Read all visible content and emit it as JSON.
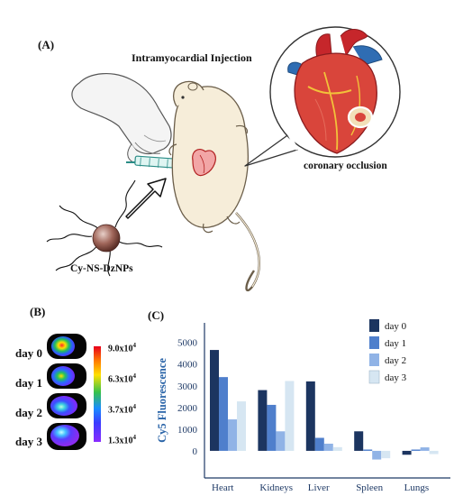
{
  "panel_a": {
    "label": "(A)",
    "title": "Intramyocardial Injection",
    "particle_name": "Cy-NS-DzNPs",
    "zoom_caption": "coronary occlusion"
  },
  "panel_b": {
    "label": "(B)",
    "days": [
      "day 0",
      "day 1",
      "day 2",
      "day 3"
    ],
    "colorbar_ticks": [
      "9.0x10",
      "6.3x10",
      "3.7x10",
      "1.3x10"
    ],
    "colorbar_exponent": "4"
  },
  "panel_c": {
    "label": "(C)"
  },
  "chart_data": {
    "type": "bar",
    "categories": [
      "Heart",
      "Kidneys",
      "Liver",
      "Spleen",
      "Lungs"
    ],
    "ylabel": "Cy5 Fluorescence",
    "yticks": [
      5000,
      4000,
      3000,
      2000,
      1000,
      0
    ],
    "ylim": [
      -1250,
      5900
    ],
    "legend_position": "top-right",
    "series": [
      {
        "name": "day 0",
        "color": "#1c3560",
        "values": [
          4650,
          2800,
          3200,
          900,
          -180
        ]
      },
      {
        "name": "day 1",
        "color": "#4f7fcc",
        "values": [
          3400,
          2120,
          600,
          60,
          60
        ]
      },
      {
        "name": "day 2",
        "color": "#90b3e6",
        "values": [
          1450,
          900,
          330,
          -400,
          160
        ]
      },
      {
        "name": "day 3",
        "color": "#d6e6f2",
        "values": [
          2280,
          3220,
          170,
          -340,
          -150
        ]
      }
    ]
  }
}
